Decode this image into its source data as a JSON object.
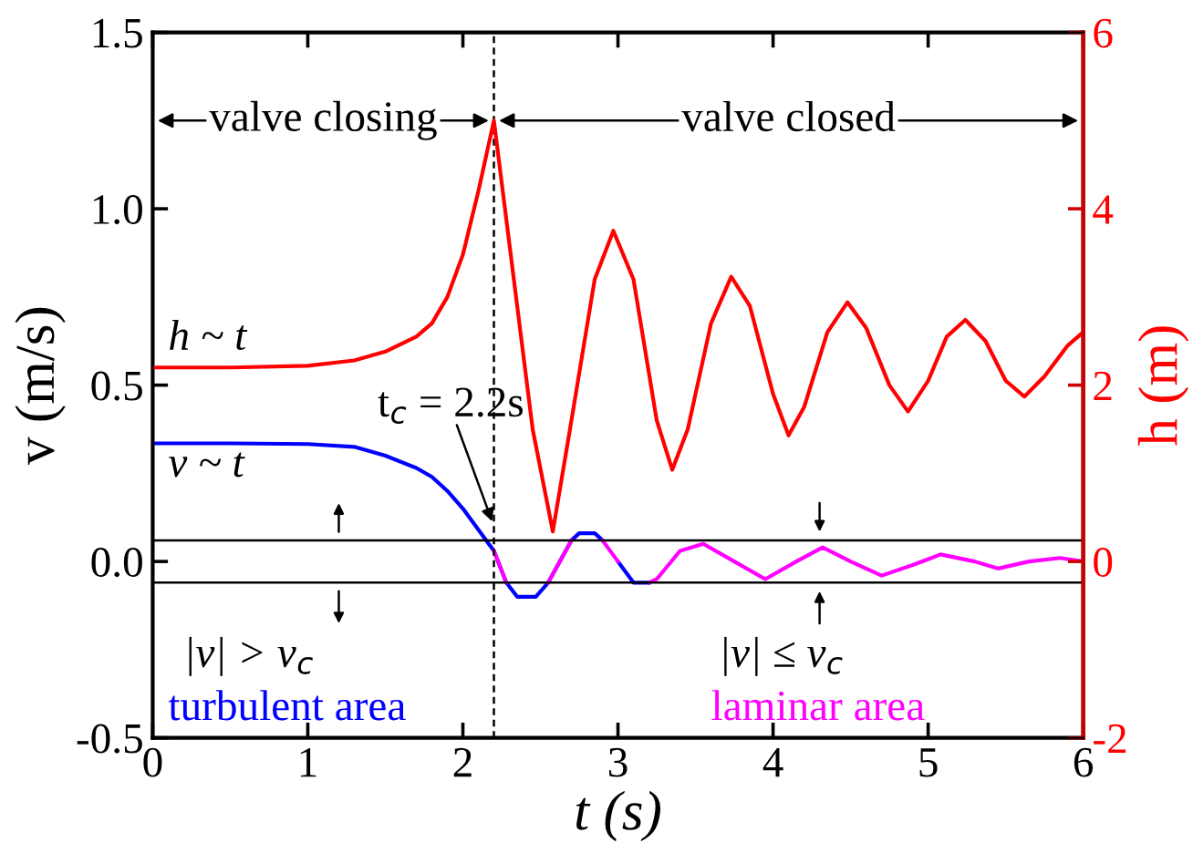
{
  "chart_data": {
    "type": "line",
    "xlabel": "t (s)",
    "ylabel": "v (m/s)",
    "y2label": "h (m)",
    "xlim": [
      0,
      6
    ],
    "xticks": [
      0,
      1,
      2,
      3,
      4,
      5,
      6
    ],
    "ylim": [
      -0.5,
      1.5
    ],
    "yticks": [
      {
        "value": -0.5,
        "label": "-0.5"
      },
      {
        "value": 0,
        "label": "0.0"
      },
      {
        "value": 0.5,
        "label": "0.5"
      },
      {
        "value": 1,
        "label": "1.0"
      },
      {
        "value": 1.5,
        "label": "1.5"
      }
    ],
    "y2lim": [
      -2,
      6
    ],
    "y2ticks": [
      -2,
      0,
      2,
      4,
      6
    ],
    "grid": false,
    "legend": false,
    "marker": "none",
    "series": [
      {
        "color": "#ff0000",
        "axis": "y2",
        "x": [
          0,
          0.5,
          1.0,
          1.3,
          1.5,
          1.7,
          1.8,
          1.9,
          2.0,
          2.1,
          2.2,
          2.3,
          2.45,
          2.58,
          2.7,
          2.85,
          2.97,
          3.1,
          3.25,
          3.35,
          3.45,
          3.6,
          3.73,
          3.85,
          4.0,
          4.1,
          4.2,
          4.35,
          4.48,
          4.6,
          4.75,
          4.87,
          5.0,
          5.12,
          5.24,
          5.37,
          5.5,
          5.62,
          5.75,
          5.9,
          6.0
        ],
        "values": [
          2.2,
          2.2,
          2.22,
          2.28,
          2.38,
          2.55,
          2.7,
          3.0,
          3.48,
          4.2,
          5.0,
          3.6,
          1.5,
          0.34,
          1.6,
          3.2,
          3.75,
          3.2,
          1.6,
          1.04,
          1.5,
          2.7,
          3.23,
          2.9,
          1.9,
          1.43,
          1.75,
          2.6,
          2.94,
          2.65,
          2.0,
          1.7,
          2.05,
          2.55,
          2.74,
          2.5,
          2.05,
          1.87,
          2.1,
          2.45,
          2.6
        ]
      },
      {
        "name": "turbulent area",
        "color": "#0000ff",
        "x": [
          0,
          0.5,
          1.0,
          1.3,
          1.5,
          1.7,
          1.8,
          1.9,
          2.0,
          2.1,
          2.2,
          2.28,
          2.35,
          2.47,
          2.55,
          2.7,
          2.75,
          2.85,
          2.9,
          2.95,
          3.0,
          3.1,
          3.2
        ],
        "values": [
          0.335,
          0.335,
          0.333,
          0.325,
          0.3,
          0.265,
          0.24,
          0.2,
          0.15,
          0.09,
          0.03,
          -0.06,
          -0.1,
          -0.1,
          -0.06,
          0.06,
          0.08,
          0.08,
          0.06,
          null,
          0.0,
          -0.06,
          -0.06
        ]
      },
      {
        "name": "laminar area",
        "color": "#ff00ff",
        "x": [
          2.2,
          2.28,
          2.35,
          2.47,
          2.55,
          2.7,
          2.75,
          2.85,
          2.9,
          3.0,
          3.1,
          3.2,
          3.25,
          3.4,
          3.55,
          3.75,
          3.95,
          4.15,
          4.32,
          4.5,
          4.7,
          4.9,
          5.08,
          5.3,
          5.45,
          5.65,
          5.85,
          6.0
        ],
        "values": [
          0.03,
          -0.06,
          null,
          null,
          -0.06,
          0.06,
          null,
          null,
          0.06,
          0.0,
          null,
          -0.06,
          -0.05,
          0.03,
          0.05,
          0.0,
          -0.05,
          0.0,
          0.04,
          0.0,
          -0.04,
          -0.01,
          0.02,
          0.0,
          -0.02,
          0.0,
          0.01,
          0.0
        ]
      }
    ],
    "ref_lines": [
      {
        "axis": "x",
        "value": 2.2,
        "color": "#000000",
        "line_style": "dashed"
      },
      {
        "axis": "y",
        "value": 0.06,
        "color": "#000000",
        "line_style": "solid"
      },
      {
        "axis": "y",
        "value": -0.06,
        "color": "#000000",
        "line_style": "solid"
      }
    ],
    "annotations": [
      "valve closing",
      "valve closed",
      "h ~ t",
      "v ~ t",
      {
        "text": "t$_{c}$ = 2.2s",
        "x": 2.2,
        "y": 0.1
      },
      "|v| > v$_{c}$",
      "|v| ≤ v$_{c}$"
    ]
  }
}
